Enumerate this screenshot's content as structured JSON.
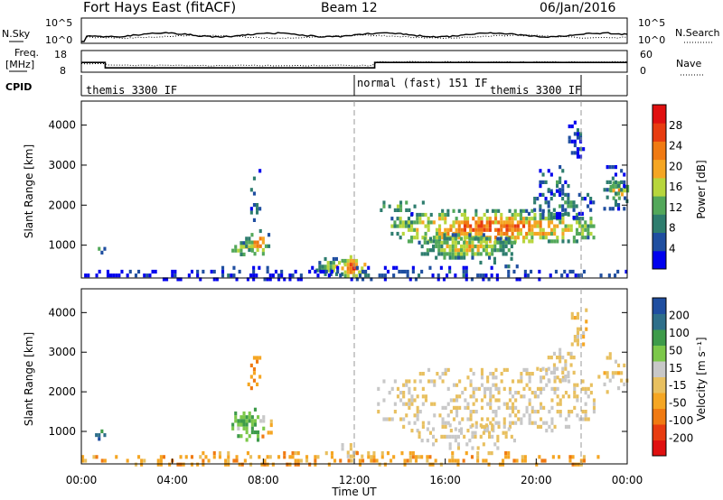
{
  "header": {
    "title": "Fort Hays East (fitACF)",
    "beam": "Beam 12",
    "date": "06/Jan/2016"
  },
  "sky_panel": {
    "left_label": "N.Sky",
    "right_label": "N.Search",
    "left_ticks": [
      "10^5",
      "10^0"
    ],
    "right_ticks": [
      "10^5",
      "10^0"
    ]
  },
  "freq_panel": {
    "left_label_line1": "Freq.",
    "left_label_line2": "[MHz]",
    "right_label": "Nave",
    "left_ticks": [
      "18",
      "8"
    ],
    "right_ticks": [
      "60",
      "0"
    ],
    "freq_steps": [
      {
        "t0": 0.0,
        "t1": 1.05,
        "mhz": 12.5
      },
      {
        "t0": 1.05,
        "t1": 12.9,
        "mhz": 10.0
      },
      {
        "t0": 12.9,
        "t1": 24.0,
        "mhz": 12.5
      }
    ]
  },
  "cpid": {
    "label": "CPID",
    "segments": [
      {
        "start": 0.0,
        "end": 12.0,
        "text": "themis 3300 IF"
      },
      {
        "start": 12.0,
        "end": 21.8,
        "text": "normal (fast) 151 IF"
      },
      {
        "start": 21.8,
        "end": 24.0,
        "text": "themis 3300 IF"
      }
    ]
  },
  "colors": {
    "power": [
      "#0000ee",
      "#1f4ea0",
      "#2e7d6e",
      "#53a85a",
      "#b7d63c",
      "#f5a623",
      "#f07a12",
      "#e83c10",
      "#e01010"
    ],
    "velocity": [
      "#e01010",
      "#e83c10",
      "#f07a12",
      "#f5a623",
      "#e8c060",
      "#c8c8c8",
      "#7cc84a",
      "#3e9b4a",
      "#2e6f8a",
      "#1f4ea0"
    ]
  },
  "chart_data": [
    {
      "type": "heatmap",
      "name": "power",
      "ylabel": "Slant Range [km]",
      "xlim": [
        0,
        24
      ],
      "ylim": [
        180,
        4600
      ],
      "yticks": [
        1000,
        2000,
        3000,
        4000
      ],
      "colorbar": {
        "label": "Power [dB]",
        "ticks": [
          "4",
          "8",
          "12",
          "16",
          "20",
          "24",
          "28"
        ],
        "range": [
          0,
          32
        ]
      },
      "regions": [
        {
          "t0": 0.6,
          "t1": 1.0,
          "r0": 850,
          "r1": 1050,
          "level": 0.35
        },
        {
          "t0": 6.6,
          "t1": 7.6,
          "r0": 750,
          "r1": 1100,
          "level": 0.65
        },
        {
          "t0": 7.2,
          "t1": 8.3,
          "r0": 800,
          "r1": 1400,
          "level": 0.72
        },
        {
          "t0": 7.3,
          "t1": 7.9,
          "r0": 1500,
          "r1": 3000,
          "level": 0.3
        },
        {
          "t0": 10.3,
          "t1": 11.6,
          "r0": 300,
          "r1": 700,
          "level": 0.55
        },
        {
          "t0": 11.3,
          "t1": 12.5,
          "r0": 250,
          "r1": 750,
          "level": 0.9
        },
        {
          "t0": 13.6,
          "t1": 22.5,
          "r0": 1050,
          "r1": 1900,
          "level": 0.82
        },
        {
          "t0": 14.8,
          "t1": 19.0,
          "r0": 700,
          "r1": 1300,
          "level": 0.6
        },
        {
          "t0": 13.0,
          "t1": 15.0,
          "r0": 1800,
          "r1": 2300,
          "level": 0.45
        },
        {
          "t0": 17.5,
          "t1": 19.2,
          "r0": 450,
          "r1": 800,
          "level": 0.45
        },
        {
          "t0": 19.5,
          "t1": 22.5,
          "r0": 1700,
          "r1": 2400,
          "level": 0.3
        },
        {
          "t0": 20.0,
          "t1": 21.7,
          "r0": 2300,
          "r1": 3000,
          "level": 0.25
        },
        {
          "t0": 21.4,
          "t1": 22.2,
          "r0": 3100,
          "r1": 4300,
          "level": 0.2
        },
        {
          "t0": 23.1,
          "t1": 24.0,
          "r0": 2200,
          "r1": 2600,
          "level": 0.7
        },
        {
          "t0": 22.7,
          "t1": 24.0,
          "r0": 1900,
          "r1": 3000,
          "level": 0.3
        },
        {
          "t0": 0.0,
          "t1": 24.0,
          "r0": 180,
          "r1": 480,
          "level": 0.18
        }
      ]
    },
    {
      "type": "heatmap",
      "name": "velocity",
      "ylabel": "Slant Range [km]",
      "xlabel": "Time UT",
      "xlim": [
        0,
        24
      ],
      "ylim": [
        180,
        4600
      ],
      "yticks": [
        1000,
        2000,
        3000,
        4000
      ],
      "xticks": [
        "00:00",
        "04:00",
        "08:00",
        "12:00",
        "16:00",
        "20:00",
        "00:00"
      ],
      "colorbar": {
        "label": "Velocity [m s⁻¹]",
        "ticks": [
          "-200",
          "-100",
          "-50",
          "-15",
          "15",
          "50",
          "100",
          "200"
        ],
        "range": [
          -250,
          250
        ]
      },
      "regions": [
        {
          "t0": 0.6,
          "t1": 1.0,
          "r0": 850,
          "r1": 1050,
          "level": 0.85
        },
        {
          "t0": 6.6,
          "t1": 8.0,
          "r0": 800,
          "r1": 1600,
          "level": 0.68
        },
        {
          "t0": 7.8,
          "t1": 8.4,
          "r0": 900,
          "r1": 1400,
          "level": 0.35
        },
        {
          "t0": 7.3,
          "t1": 7.9,
          "r0": 1600,
          "r1": 3000,
          "level": 0.3
        },
        {
          "t0": 11.3,
          "t1": 12.5,
          "r0": 300,
          "r1": 800,
          "level": 0.5
        },
        {
          "t0": 13.0,
          "t1": 22.5,
          "r0": 1000,
          "r1": 2600,
          "level": 0.5
        },
        {
          "t0": 14.8,
          "t1": 19.0,
          "r0": 600,
          "r1": 1200,
          "level": 0.5
        },
        {
          "t0": 20.0,
          "t1": 21.7,
          "r0": 2300,
          "r1": 3200,
          "level": 0.5
        },
        {
          "t0": 21.4,
          "t1": 22.2,
          "r0": 3200,
          "r1": 4300,
          "level": 0.42
        },
        {
          "t0": 22.7,
          "t1": 24.0,
          "r0": 1900,
          "r1": 3000,
          "level": 0.45
        },
        {
          "t0": 0.0,
          "t1": 24.0,
          "r0": 180,
          "r1": 500,
          "level": 0.35
        }
      ]
    }
  ]
}
